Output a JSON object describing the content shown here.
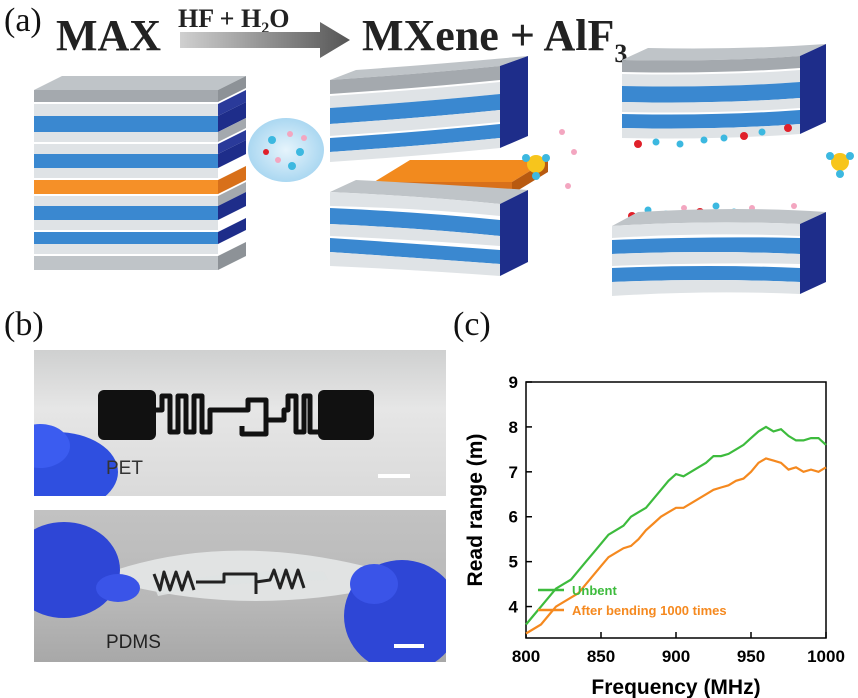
{
  "panels": {
    "a": "(a)",
    "b": "(b)",
    "c": "(c)"
  },
  "schematic": {
    "max": "MAX",
    "reagent_hf": "HF + H",
    "reagent_sub": "2",
    "reagent_o": "O",
    "product": "MXene + AlF",
    "product_sub": "3",
    "colors": {
      "gray": "#a8adb2",
      "blue": "#2e7fc9",
      "navy": "#1e2d8a",
      "orange": "#f28a1e",
      "cyan": "#3cb8e0",
      "red": "#e0202a",
      "pink": "#f3a6c0",
      "yellow": "#f7c51c"
    }
  },
  "photos": {
    "top_label": "PET",
    "bottom_label": "PDMS"
  },
  "chart_data": {
    "type": "line",
    "xlabel": "Frequency (MHz)",
    "ylabel": "Read range (m)",
    "xlim": [
      800,
      1000
    ],
    "ylim": [
      3.3,
      9
    ],
    "xticks": [
      800,
      850,
      900,
      950,
      1000
    ],
    "yticks": [
      4,
      5,
      6,
      7,
      8,
      9
    ],
    "grid": false,
    "legend_position": "bottom-left",
    "series": [
      {
        "name": "Unbent",
        "color": "#3dbb3d",
        "x": [
          800,
          805,
          810,
          815,
          820,
          825,
          830,
          835,
          840,
          845,
          850,
          855,
          860,
          865,
          870,
          875,
          880,
          885,
          890,
          895,
          900,
          905,
          910,
          915,
          920,
          925,
          930,
          935,
          940,
          945,
          950,
          955,
          960,
          965,
          970,
          975,
          980,
          985,
          990,
          995,
          1000
        ],
        "values": [
          3.6,
          3.8,
          4.0,
          4.2,
          4.4,
          4.5,
          4.6,
          4.8,
          5.0,
          5.2,
          5.4,
          5.6,
          5.7,
          5.8,
          6.0,
          6.1,
          6.2,
          6.4,
          6.6,
          6.8,
          6.95,
          6.9,
          7.0,
          7.1,
          7.2,
          7.35,
          7.35,
          7.4,
          7.5,
          7.6,
          7.75,
          7.9,
          8.0,
          7.9,
          7.95,
          7.8,
          7.7,
          7.7,
          7.75,
          7.75,
          7.6
        ]
      },
      {
        "name": "After bending 1000 times",
        "color": "#f5891f",
        "x": [
          800,
          805,
          810,
          815,
          820,
          825,
          830,
          835,
          840,
          845,
          850,
          855,
          860,
          865,
          870,
          875,
          880,
          885,
          890,
          895,
          900,
          905,
          910,
          915,
          920,
          925,
          930,
          935,
          940,
          945,
          950,
          955,
          960,
          965,
          970,
          975,
          980,
          985,
          990,
          995,
          1000
        ],
        "values": [
          3.4,
          3.5,
          3.6,
          3.8,
          4.0,
          4.1,
          4.2,
          4.3,
          4.5,
          4.7,
          4.9,
          5.1,
          5.2,
          5.3,
          5.35,
          5.5,
          5.7,
          5.85,
          6.0,
          6.1,
          6.2,
          6.2,
          6.3,
          6.4,
          6.5,
          6.6,
          6.65,
          6.7,
          6.8,
          6.85,
          7.0,
          7.2,
          7.3,
          7.25,
          7.2,
          7.05,
          7.1,
          7.0,
          7.05,
          7.0,
          7.1
        ]
      }
    ]
  }
}
